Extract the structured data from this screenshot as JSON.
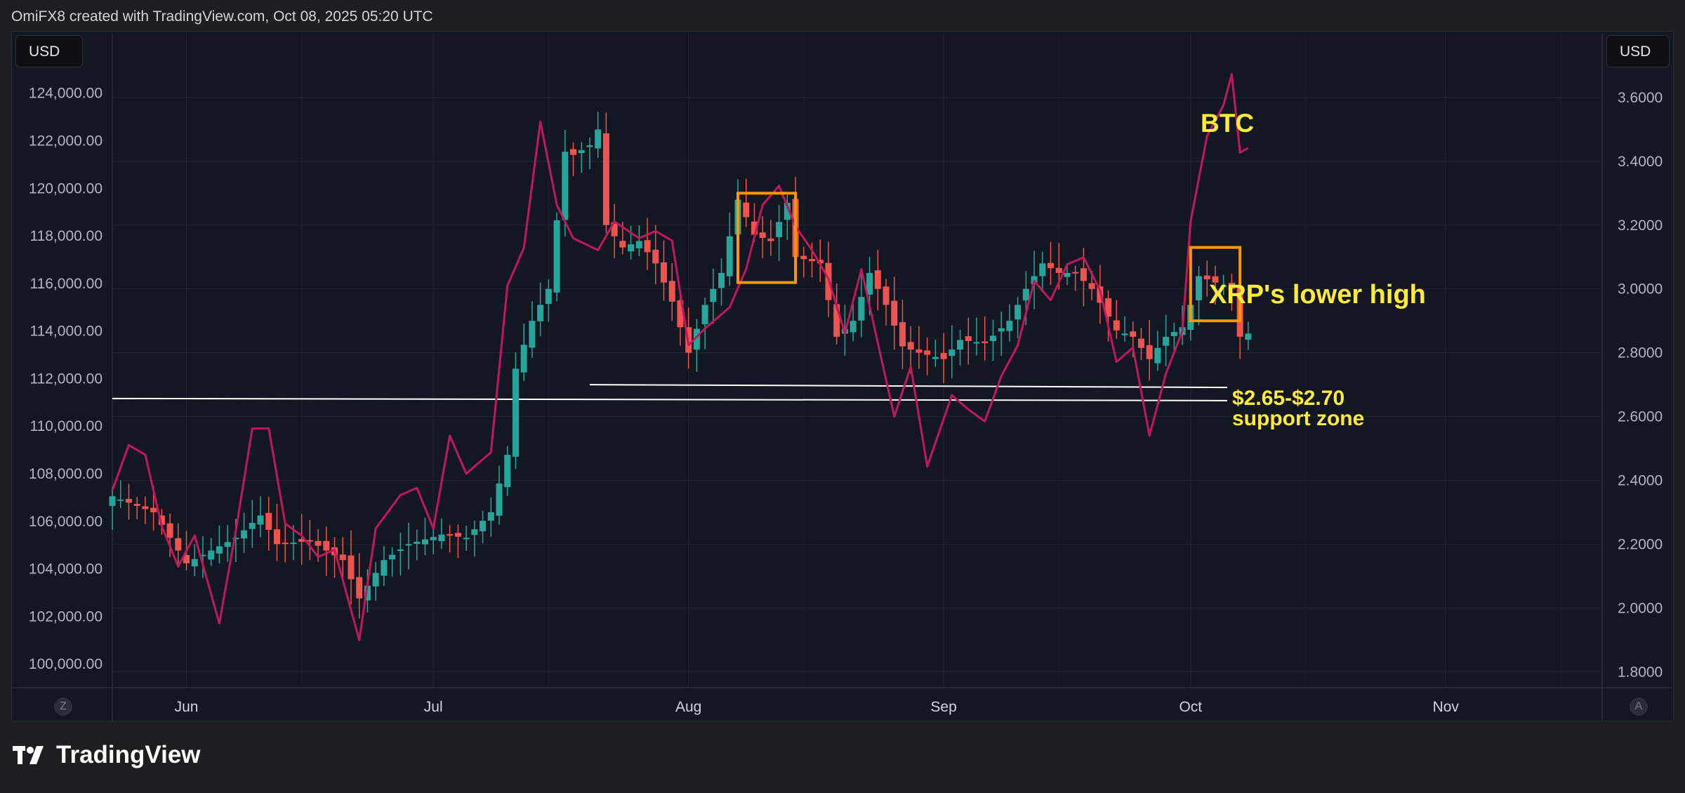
{
  "header": {
    "attribution": "OmiFX8 created with TradingView.com, Oct 08, 2025 05:20 UTC"
  },
  "left_currency": "USD",
  "right_currency": "USD",
  "corner_left": "Z",
  "corner_right": "A",
  "brand": {
    "name": "TradingView",
    "logo_icon": "tradingview-logo-icon"
  },
  "colors": {
    "background": "#131722",
    "up": "#26a69a",
    "down": "#ef5350",
    "btc_line": "#c2185b",
    "annotation": "#ffeb3b",
    "box": "#ff9800",
    "support": "#ffffff"
  },
  "chart_data": {
    "type": "candlestick",
    "series": [
      {
        "name": "XRP",
        "kind": "candlestick",
        "axis": "right"
      },
      {
        "name": "BTC",
        "kind": "line",
        "axis": "left"
      }
    ],
    "left_axis": {
      "ticks": [
        "100,000.00",
        "102,000.00",
        "104,000.00",
        "106,000.00",
        "108,000.00",
        "110,000.00",
        "112,000.00",
        "114,000.00",
        "116,000.00",
        "118,000.00",
        "120,000.00",
        "122,000.00",
        "124,000.00"
      ],
      "range": [
        99000,
        126500
      ]
    },
    "right_axis": {
      "ticks": [
        "1.8000",
        "2.0000",
        "2.2000",
        "2.4000",
        "2.6000",
        "2.8000",
        "3.0000",
        "3.2000",
        "3.4000",
        "3.6000"
      ],
      "range": [
        1.75,
        3.8
      ]
    },
    "x_axis": {
      "labels": [
        "Jun",
        "Jul",
        "Aug",
        "Sep",
        "Oct",
        "Nov"
      ],
      "start": "2025-05-23",
      "end": "2025-11-20"
    },
    "annotations": {
      "btc_label": "BTC",
      "lower_high": "XRP's lower high",
      "support_price": "$2.65-$2.70",
      "support_label": "support zone"
    },
    "support_zone": [
      2.65,
      2.7
    ],
    "highlight_boxes": [
      {
        "start": "2025-08-07",
        "end": "2025-08-14",
        "low": 3.02,
        "high": 3.3
      },
      {
        "start": "2025-10-01",
        "end": "2025-10-07",
        "low": 2.9,
        "high": 3.13
      }
    ],
    "xrp_close_anchors": [
      [
        "2025-05-23",
        2.35
      ],
      [
        "2025-05-28",
        2.3
      ],
      [
        "2025-06-01",
        2.14
      ],
      [
        "2025-06-04",
        2.18
      ],
      [
        "2025-06-07",
        2.22
      ],
      [
        "2025-06-10",
        2.29
      ],
      [
        "2025-06-12",
        2.2
      ],
      [
        "2025-06-16",
        2.21
      ],
      [
        "2025-06-20",
        2.15
      ],
      [
        "2025-06-22",
        2.03
      ],
      [
        "2025-06-25",
        2.15
      ],
      [
        "2025-06-28",
        2.2
      ],
      [
        "2025-07-02",
        2.23
      ],
      [
        "2025-07-05",
        2.22
      ],
      [
        "2025-07-08",
        2.3
      ],
      [
        "2025-07-10",
        2.48
      ],
      [
        "2025-07-11",
        2.75
      ],
      [
        "2025-07-13",
        2.9
      ],
      [
        "2025-07-15",
        3.0
      ],
      [
        "2025-07-17",
        3.43
      ],
      [
        "2025-07-18",
        3.42
      ],
      [
        "2025-07-20",
        3.45
      ],
      [
        "2025-07-21",
        3.5
      ],
      [
        "2025-07-22",
        3.2
      ],
      [
        "2025-07-24",
        3.13
      ],
      [
        "2025-07-26",
        3.15
      ],
      [
        "2025-07-28",
        3.08
      ],
      [
        "2025-07-30",
        2.96
      ],
      [
        "2025-08-01",
        2.8
      ],
      [
        "2025-08-03",
        2.95
      ],
      [
        "2025-08-05",
        3.05
      ],
      [
        "2025-08-07",
        3.28
      ],
      [
        "2025-08-09",
        3.17
      ],
      [
        "2025-08-11",
        3.15
      ],
      [
        "2025-08-13",
        3.27
      ],
      [
        "2025-08-14",
        3.1
      ],
      [
        "2025-08-17",
        3.08
      ],
      [
        "2025-08-19",
        2.85
      ],
      [
        "2025-08-21",
        2.9
      ],
      [
        "2025-08-23",
        3.05
      ],
      [
        "2025-08-25",
        2.95
      ],
      [
        "2025-08-27",
        2.82
      ],
      [
        "2025-08-29",
        2.8
      ],
      [
        "2025-09-01",
        2.78
      ],
      [
        "2025-09-03",
        2.84
      ],
      [
        "2025-09-06",
        2.83
      ],
      [
        "2025-09-09",
        2.9
      ],
      [
        "2025-09-11",
        3.0
      ],
      [
        "2025-09-13",
        3.08
      ],
      [
        "2025-09-15",
        3.05
      ],
      [
        "2025-09-17",
        3.05
      ],
      [
        "2025-09-19",
        3.0
      ],
      [
        "2025-09-22",
        2.87
      ],
      [
        "2025-09-24",
        2.85
      ],
      [
        "2025-09-26",
        2.78
      ],
      [
        "2025-09-28",
        2.85
      ],
      [
        "2025-09-30",
        2.88
      ],
      [
        "2025-10-01",
        2.95
      ],
      [
        "2025-10-02",
        3.04
      ],
      [
        "2025-10-04",
        3.02
      ],
      [
        "2025-10-06",
        3.0
      ],
      [
        "2025-10-07",
        2.85
      ],
      [
        "2025-10-08",
        2.86
      ]
    ],
    "btc_close_anchors": [
      [
        "2025-05-23",
        107300
      ],
      [
        "2025-05-25",
        109200
      ],
      [
        "2025-05-27",
        108800
      ],
      [
        "2025-05-29",
        105800
      ],
      [
        "2025-05-31",
        104100
      ],
      [
        "2025-06-02",
        105400
      ],
      [
        "2025-06-05",
        101700
      ],
      [
        "2025-06-07",
        105600
      ],
      [
        "2025-06-09",
        109900
      ],
      [
        "2025-06-11",
        109900
      ],
      [
        "2025-06-13",
        105900
      ],
      [
        "2025-06-15",
        105400
      ],
      [
        "2025-06-17",
        104500
      ],
      [
        "2025-06-19",
        104800
      ],
      [
        "2025-06-22",
        101000
      ],
      [
        "2025-06-24",
        105700
      ],
      [
        "2025-06-27",
        107100
      ],
      [
        "2025-06-29",
        107400
      ],
      [
        "2025-07-01",
        105700
      ],
      [
        "2025-07-03",
        109600
      ],
      [
        "2025-07-05",
        108000
      ],
      [
        "2025-07-08",
        108900
      ],
      [
        "2025-07-10",
        115900
      ],
      [
        "2025-07-12",
        117500
      ],
      [
        "2025-07-14",
        122800
      ],
      [
        "2025-07-16",
        119300
      ],
      [
        "2025-07-18",
        117900
      ],
      [
        "2025-07-21",
        117400
      ],
      [
        "2025-07-23",
        118600
      ],
      [
        "2025-07-26",
        117900
      ],
      [
        "2025-07-28",
        118200
      ],
      [
        "2025-07-30",
        117800
      ],
      [
        "2025-08-01",
        113400
      ],
      [
        "2025-08-03",
        114100
      ],
      [
        "2025-08-06",
        115000
      ],
      [
        "2025-08-08",
        116600
      ],
      [
        "2025-08-10",
        119300
      ],
      [
        "2025-08-12",
        120100
      ],
      [
        "2025-08-14",
        118400
      ],
      [
        "2025-08-16",
        117400
      ],
      [
        "2025-08-18",
        116200
      ],
      [
        "2025-08-20",
        113900
      ],
      [
        "2025-08-22",
        116600
      ],
      [
        "2025-08-24",
        113500
      ],
      [
        "2025-08-26",
        110400
      ],
      [
        "2025-08-28",
        112500
      ],
      [
        "2025-08-30",
        108300
      ],
      [
        "2025-09-02",
        111300
      ],
      [
        "2025-09-04",
        110700
      ],
      [
        "2025-09-06",
        110200
      ],
      [
        "2025-09-08",
        112100
      ],
      [
        "2025-09-10",
        113400
      ],
      [
        "2025-09-12",
        116100
      ],
      [
        "2025-09-14",
        115300
      ],
      [
        "2025-09-16",
        116800
      ],
      [
        "2025-09-18",
        117100
      ],
      [
        "2025-09-20",
        115700
      ],
      [
        "2025-09-22",
        112700
      ],
      [
        "2025-09-24",
        113300
      ],
      [
        "2025-09-26",
        109600
      ],
      [
        "2025-09-28",
        112200
      ],
      [
        "2025-09-30",
        114000
      ],
      [
        "2025-10-01",
        118600
      ],
      [
        "2025-10-03",
        122200
      ],
      [
        "2025-10-05",
        123500
      ],
      [
        "2025-10-06",
        124800
      ],
      [
        "2025-10-07",
        121500
      ],
      [
        "2025-10-08",
        121700
      ]
    ]
  }
}
